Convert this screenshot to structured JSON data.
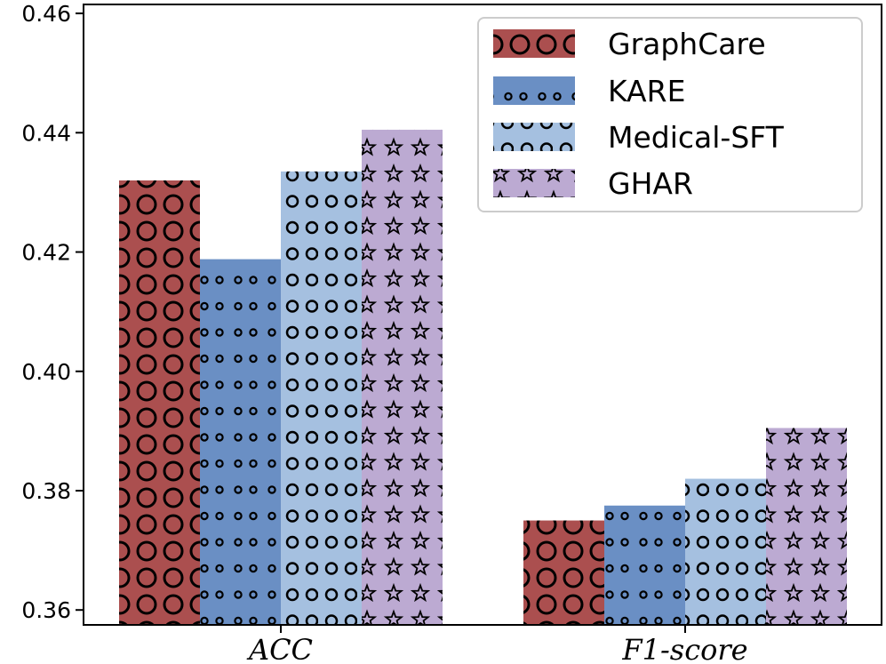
{
  "chart_data": {
    "type": "bar",
    "categories": [
      "ACC",
      "F1-score"
    ],
    "series": [
      {
        "name": "GraphCare",
        "values": [
          0.432,
          0.375
        ],
        "color": "#ab4f4f",
        "hatch": "large-circles"
      },
      {
        "name": "KARE",
        "values": [
          0.4188,
          0.3775
        ],
        "color": "#6a8fc4",
        "hatch": "small-dots"
      },
      {
        "name": "Medical-SFT",
        "values": [
          0.4335,
          0.382
        ],
        "color": "#a5c0e0",
        "hatch": "circles"
      },
      {
        "name": "GHAR",
        "values": [
          0.4405,
          0.3905
        ],
        "color": "#bcaad2",
        "hatch": "stars"
      }
    ],
    "yticks": [
      "0.36",
      "0.38",
      "0.40",
      "0.42",
      "0.44",
      "0.46"
    ],
    "ylim": [
      0.3575,
      0.4615
    ],
    "xlabel": "",
    "ylabel": "",
    "title": "",
    "grid": false,
    "legend_position": "top-right"
  }
}
